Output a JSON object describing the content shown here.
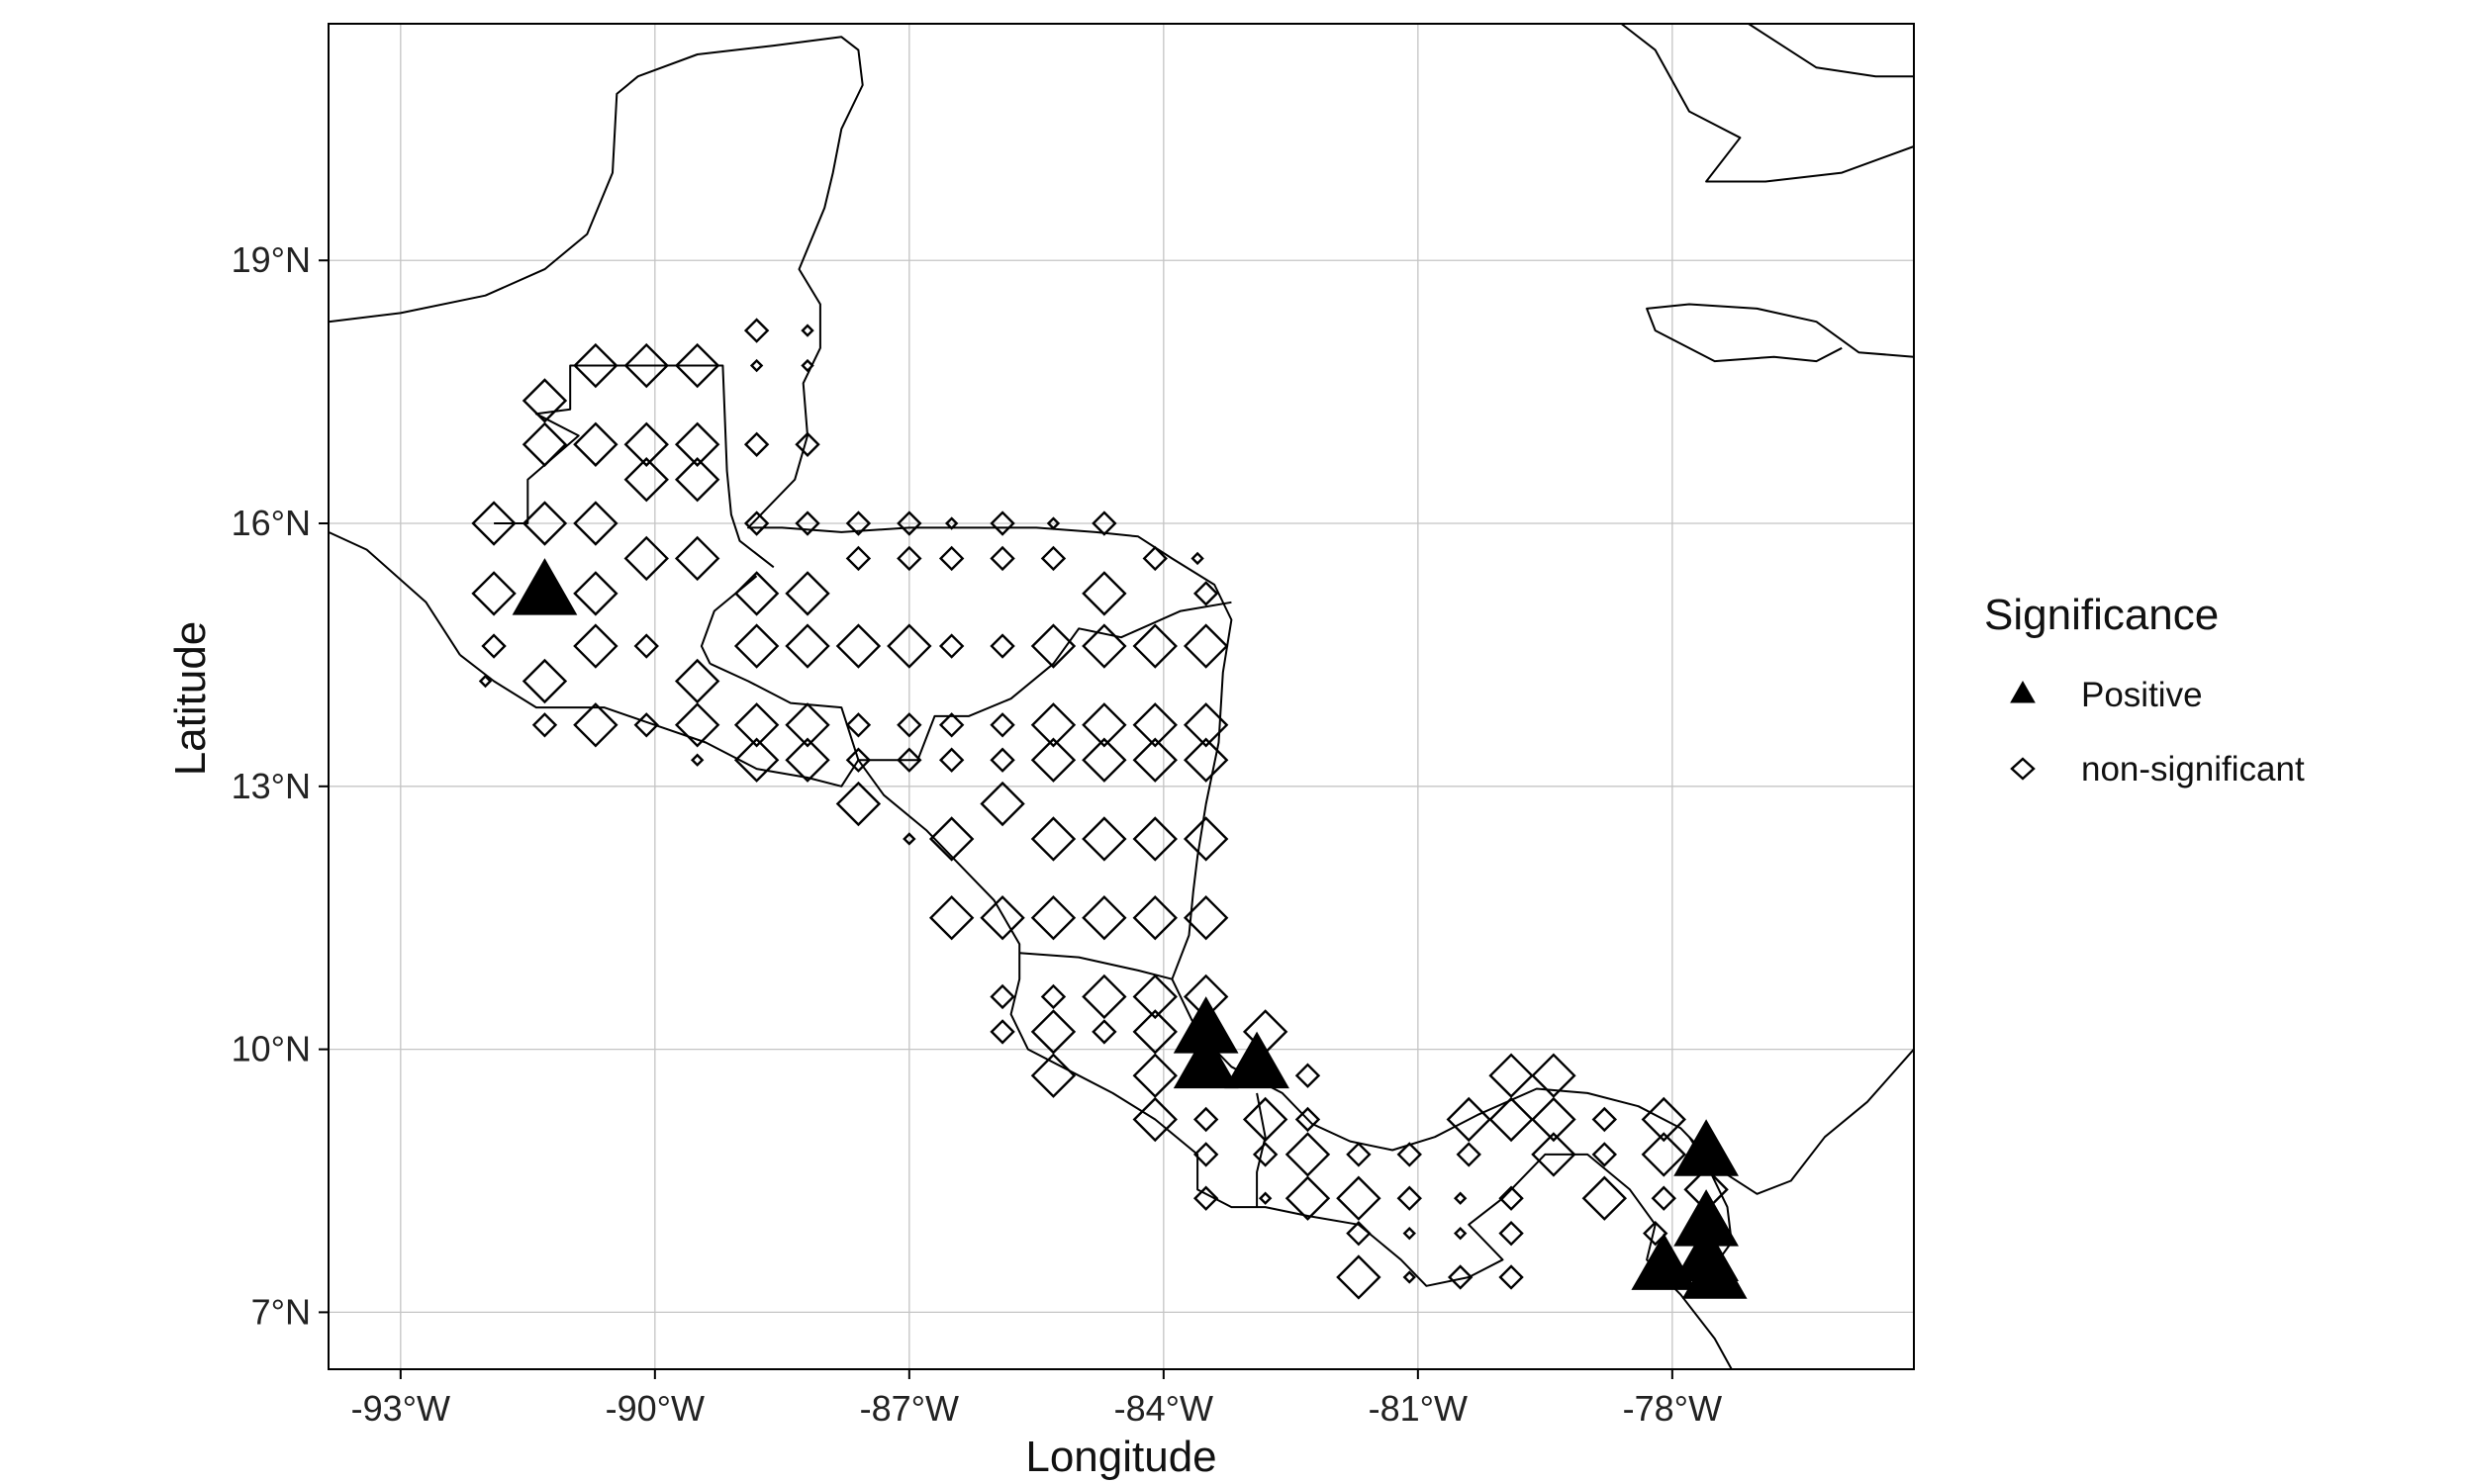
{
  "chart_data": {
    "type": "scatter",
    "xlabel": "Longitude",
    "ylabel": "Latitude",
    "xlim": [
      -93.85,
      -75.15
    ],
    "ylim": [
      6.35,
      21.7
    ],
    "x_ticks": [
      -93,
      -90,
      -87,
      -84,
      -81,
      -78
    ],
    "x_tick_labels": [
      "-93°W",
      "-90°W",
      "-87°W",
      "-84°W",
      "-81°W",
      "-78°W"
    ],
    "y_ticks": [
      7,
      10,
      13,
      16,
      19
    ],
    "y_tick_labels": [
      "7°N",
      "10°N",
      "13°N",
      "16°N",
      "19°N"
    ],
    "grid": true,
    "legend": {
      "title": "Significance",
      "position": "right",
      "entries": [
        {
          "label": "Positive",
          "shape": "triangle-filled"
        },
        {
          "label": "non-significant",
          "shape": "diamond-open"
        }
      ]
    },
    "series": [
      {
        "name": "Positive",
        "shape": "triangle-filled",
        "points": [
          [
            -91.3,
            15.2,
            2
          ],
          [
            -83.5,
            10.2,
            2
          ],
          [
            -83.5,
            9.8,
            2
          ],
          [
            -82.9,
            9.8,
            2
          ],
          [
            -77.6,
            8.8,
            2
          ],
          [
            -77.6,
            8.0,
            2
          ],
          [
            -77.6,
            7.6,
            2
          ],
          [
            -78.1,
            7.5,
            2
          ],
          [
            -77.5,
            7.4,
            2
          ]
        ]
      },
      {
        "name": "non-significant",
        "shape": "diamond-open",
        "points": [
          [
            -88.8,
            18.2,
            1
          ],
          [
            -88.2,
            18.2,
            0
          ],
          [
            -91.3,
            17.4,
            2
          ],
          [
            -90.7,
            17.8,
            2
          ],
          [
            -90.1,
            17.8,
            2
          ],
          [
            -89.5,
            17.8,
            2
          ],
          [
            -88.8,
            17.8,
            0
          ],
          [
            -88.2,
            17.8,
            0
          ],
          [
            -91.3,
            16.9,
            2
          ],
          [
            -90.7,
            16.9,
            2
          ],
          [
            -90.1,
            16.9,
            2
          ],
          [
            -89.5,
            16.9,
            2
          ],
          [
            -88.8,
            16.9,
            1
          ],
          [
            -88.2,
            16.9,
            1
          ],
          [
            -91.9,
            16.0,
            2
          ],
          [
            -91.3,
            16.0,
            2
          ],
          [
            -90.7,
            16.0,
            2
          ],
          [
            -90.1,
            16.5,
            2
          ],
          [
            -89.5,
            16.5,
            2
          ],
          [
            -88.8,
            16.0,
            1
          ],
          [
            -88.2,
            16.0,
            1
          ],
          [
            -87.6,
            16.0,
            1
          ],
          [
            -87.0,
            16.0,
            1
          ],
          [
            -86.5,
            16.0,
            0
          ],
          [
            -85.9,
            16.0,
            1
          ],
          [
            -85.3,
            16.0,
            0
          ],
          [
            -84.7,
            16.0,
            1
          ],
          [
            -83.6,
            15.6,
            0
          ],
          [
            -91.9,
            15.2,
            2
          ],
          [
            -90.7,
            15.2,
            2
          ],
          [
            -90.1,
            15.6,
            2
          ],
          [
            -89.5,
            15.6,
            2
          ],
          [
            -88.8,
            15.2,
            2
          ],
          [
            -88.2,
            15.2,
            2
          ],
          [
            -87.6,
            15.6,
            1
          ],
          [
            -87.0,
            15.6,
            1
          ],
          [
            -86.5,
            15.6,
            1
          ],
          [
            -85.9,
            15.6,
            1
          ],
          [
            -85.3,
            15.6,
            1
          ],
          [
            -84.7,
            15.2,
            2
          ],
          [
            -84.1,
            15.6,
            1
          ],
          [
            -83.5,
            15.2,
            1
          ],
          [
            -91.9,
            14.6,
            1
          ],
          [
            -91.3,
            14.2,
            2
          ],
          [
            -90.7,
            14.6,
            2
          ],
          [
            -90.1,
            14.6,
            1
          ],
          [
            -89.5,
            14.2,
            2
          ],
          [
            -88.8,
            14.6,
            2
          ],
          [
            -88.2,
            14.6,
            2
          ],
          [
            -87.6,
            14.6,
            2
          ],
          [
            -87.0,
            14.6,
            2
          ],
          [
            -86.5,
            14.6,
            1
          ],
          [
            -85.9,
            14.6,
            1
          ],
          [
            -85.3,
            14.6,
            2
          ],
          [
            -84.7,
            14.6,
            2
          ],
          [
            -84.1,
            14.6,
            2
          ],
          [
            -83.5,
            14.6,
            2
          ],
          [
            -92.0,
            14.2,
            0
          ],
          [
            -91.3,
            13.7,
            1
          ],
          [
            -90.7,
            13.7,
            2
          ],
          [
            -90.1,
            13.7,
            1
          ],
          [
            -89.5,
            13.7,
            2
          ],
          [
            -88.8,
            13.7,
            2
          ],
          [
            -88.2,
            13.7,
            2
          ],
          [
            -87.6,
            13.7,
            1
          ],
          [
            -87.0,
            13.7,
            1
          ],
          [
            -86.5,
            13.7,
            1
          ],
          [
            -85.9,
            13.7,
            1
          ],
          [
            -85.3,
            13.7,
            2
          ],
          [
            -84.7,
            13.7,
            2
          ],
          [
            -84.1,
            13.7,
            2
          ],
          [
            -83.5,
            13.7,
            2
          ],
          [
            -89.5,
            13.3,
            0
          ],
          [
            -88.8,
            13.3,
            2
          ],
          [
            -88.2,
            13.3,
            2
          ],
          [
            -87.6,
            13.3,
            1
          ],
          [
            -87.0,
            13.3,
            1
          ],
          [
            -86.5,
            13.3,
            1
          ],
          [
            -85.9,
            13.3,
            1
          ],
          [
            -85.3,
            13.3,
            2
          ],
          [
            -84.7,
            13.3,
            2
          ],
          [
            -84.1,
            13.3,
            2
          ],
          [
            -83.5,
            13.3,
            2
          ],
          [
            -87.6,
            12.8,
            2
          ],
          [
            -87.0,
            12.4,
            0
          ],
          [
            -86.5,
            12.4,
            2
          ],
          [
            -85.9,
            12.8,
            2
          ],
          [
            -85.3,
            12.4,
            2
          ],
          [
            -84.7,
            12.4,
            2
          ],
          [
            -84.1,
            12.4,
            2
          ],
          [
            -83.5,
            12.4,
            2
          ],
          [
            -86.5,
            11.5,
            2
          ],
          [
            -85.9,
            11.5,
            2
          ],
          [
            -85.3,
            11.5,
            2
          ],
          [
            -84.7,
            11.5,
            2
          ],
          [
            -84.1,
            11.5,
            2
          ],
          [
            -83.5,
            11.5,
            2
          ],
          [
            -85.9,
            10.6,
            1
          ],
          [
            -85.3,
            10.6,
            1
          ],
          [
            -84.7,
            10.6,
            2
          ],
          [
            -84.1,
            10.6,
            2
          ],
          [
            -83.5,
            10.6,
            2
          ],
          [
            -85.9,
            10.2,
            1
          ],
          [
            -85.3,
            10.2,
            2
          ],
          [
            -84.7,
            10.2,
            1
          ],
          [
            -84.1,
            10.2,
            2
          ],
          [
            -82.8,
            10.2,
            2
          ],
          [
            -85.3,
            9.7,
            2
          ],
          [
            -84.1,
            9.7,
            2
          ],
          [
            -82.3,
            9.7,
            1
          ],
          [
            -84.1,
            9.2,
            2
          ],
          [
            -83.5,
            9.2,
            1
          ],
          [
            -82.8,
            9.2,
            2
          ],
          [
            -82.3,
            9.2,
            1
          ],
          [
            -83.5,
            8.8,
            1
          ],
          [
            -82.8,
            8.8,
            1
          ],
          [
            -82.3,
            8.8,
            2
          ],
          [
            -81.7,
            8.8,
            1
          ],
          [
            -81.1,
            8.8,
            1
          ],
          [
            -80.4,
            8.8,
            1
          ],
          [
            -83.5,
            8.3,
            1
          ],
          [
            -82.8,
            8.3,
            0
          ],
          [
            -82.3,
            8.3,
            2
          ],
          [
            -81.7,
            8.3,
            2
          ],
          [
            -81.1,
            8.3,
            1
          ],
          [
            -80.5,
            8.3,
            0
          ],
          [
            -79.9,
            8.3,
            1
          ],
          [
            -79.4,
            8.8,
            2
          ],
          [
            -78.8,
            8.8,
            1
          ],
          [
            -78.1,
            8.8,
            2
          ],
          [
            -77.6,
            8.4,
            2
          ],
          [
            -80.4,
            9.2,
            2
          ],
          [
            -79.9,
            9.2,
            2
          ],
          [
            -79.4,
            9.2,
            2
          ],
          [
            -78.8,
            9.2,
            1
          ],
          [
            -78.1,
            9.2,
            2
          ],
          [
            -79.9,
            9.7,
            2
          ],
          [
            -79.4,
            9.7,
            2
          ],
          [
            -81.7,
            7.9,
            1
          ],
          [
            -81.1,
            7.9,
            0
          ],
          [
            -80.5,
            7.9,
            0
          ],
          [
            -79.9,
            7.9,
            1
          ],
          [
            -78.8,
            8.3,
            2
          ],
          [
            -78.1,
            8.3,
            1
          ],
          [
            -78.2,
            7.9,
            1
          ],
          [
            -81.7,
            7.4,
            2
          ],
          [
            -81.1,
            7.4,
            0
          ],
          [
            -80.5,
            7.4,
            1
          ],
          [
            -79.9,
            7.4,
            1
          ]
        ]
      }
    ]
  }
}
